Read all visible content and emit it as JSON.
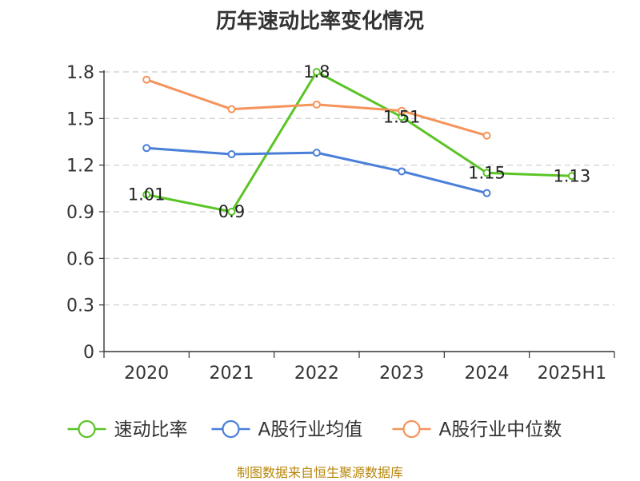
{
  "title": "历年速动比率变化情况",
  "source": "制图数据来自恒生聚源数据库",
  "colors": {
    "axis": "#333333",
    "grid": "#cccccc"
  },
  "chart_data": {
    "type": "line",
    "title": "历年速动比率变化情况",
    "categories": [
      "2020",
      "2021",
      "2022",
      "2023",
      "2024",
      "2025H1"
    ],
    "ylim": [
      0,
      1.8
    ],
    "yticks": [
      0,
      0.3,
      0.6,
      0.9,
      1.2,
      1.5,
      1.8
    ],
    "ytick_labels": [
      "0",
      "0.3",
      "0.6",
      "0.9",
      "1.2",
      "1.5",
      "1.8"
    ],
    "grid": true,
    "legend_position": "bottom",
    "series": [
      {
        "name": "速动比率",
        "color": "#5bc426",
        "values": [
          1.01,
          0.9,
          1.8,
          1.51,
          1.15,
          1.13
        ],
        "data_labels": [
          "1.01",
          "0.9",
          "1.8",
          "1.51",
          "1.15",
          "1.13"
        ]
      },
      {
        "name": "A股行业均值",
        "color": "#4a7fd8",
        "values": [
          1.31,
          1.27,
          1.28,
          1.16,
          1.02,
          null
        ]
      },
      {
        "name": "A股行业中位数",
        "color": "#f5935a",
        "values": [
          1.75,
          1.56,
          1.59,
          1.55,
          1.39,
          null
        ]
      }
    ]
  }
}
